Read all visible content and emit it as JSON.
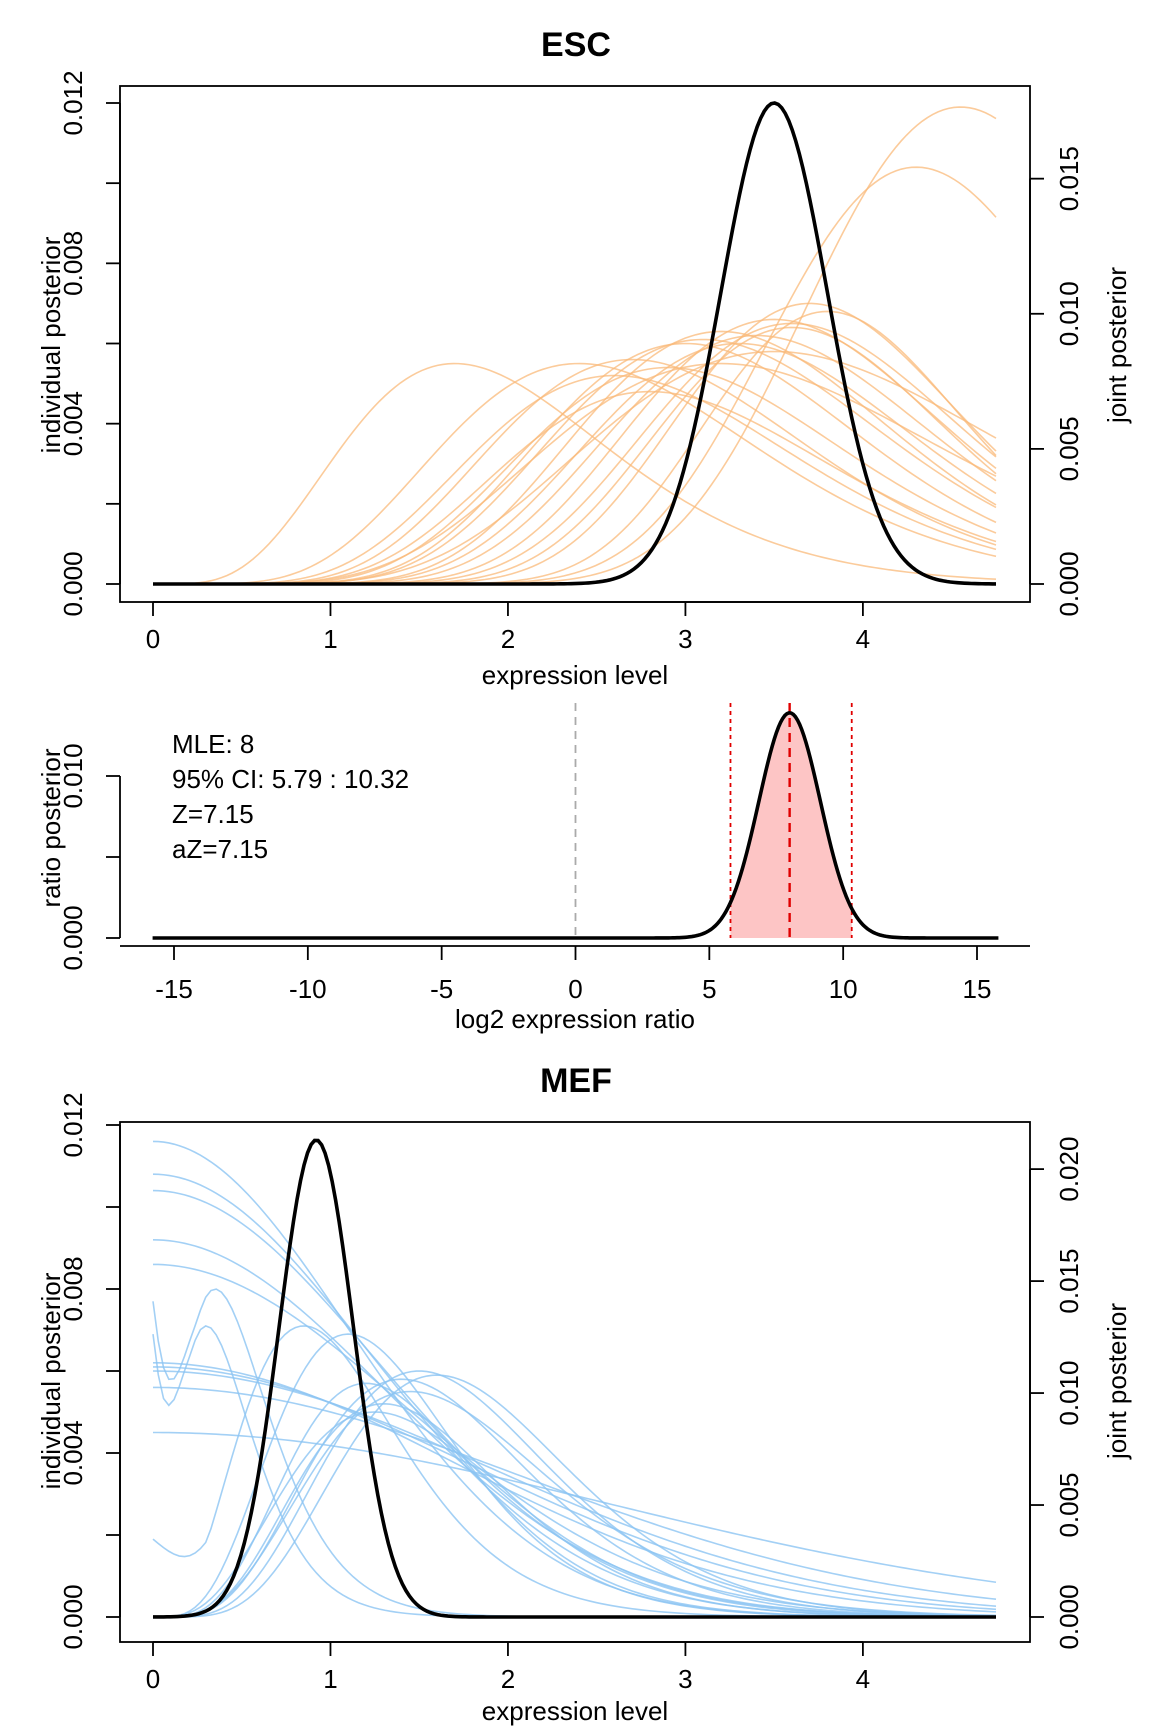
{
  "colors": {
    "esc_individual": "#f9b97a",
    "mef_individual": "#8cc4f2",
    "joint": "#000000",
    "ci_fill": "#fdc5c5",
    "ci_lines": "#e00000",
    "zero_line": "#aaaaaa"
  },
  "chart_data": [
    {
      "type": "line",
      "title": "ESC",
      "xlabel": "expression level",
      "ylabel_left": "individual posterior",
      "ylabel_right": "joint posterior",
      "xlim": [
        0,
        4.75
      ],
      "ylim_left": [
        0,
        0.012
      ],
      "ylim_right": [
        0,
        0.018
      ],
      "x_ticks": [
        "0",
        "1",
        "2",
        "3",
        "4"
      ],
      "y_ticks_left": [
        "0.000",
        "0.004",
        "0.008",
        "0.012"
      ],
      "y_ticks_right": [
        "0.000",
        "0.005",
        "0.010",
        "0.015"
      ],
      "joint_curve": {
        "kind": "gaussian",
        "mean": 3.5,
        "sd": 0.3,
        "peak": 0.0178
      },
      "individual_curves": [
        {
          "kind": "gamma",
          "mode": 1.7,
          "shape": 5,
          "peak": 0.0055
        },
        {
          "kind": "gamma",
          "mode": 2.4,
          "shape": 7,
          "peak": 0.0055
        },
        {
          "kind": "gamma",
          "mode": 2.6,
          "shape": 8,
          "peak": 0.0052
        },
        {
          "kind": "gamma",
          "mode": 2.7,
          "shape": 9,
          "peak": 0.0056
        },
        {
          "kind": "gamma",
          "mode": 2.8,
          "shape": 9,
          "peak": 0.0048
        },
        {
          "kind": "gamma",
          "mode": 2.9,
          "shape": 10,
          "peak": 0.0054
        },
        {
          "kind": "gamma",
          "mode": 3.0,
          "shape": 11,
          "peak": 0.006
        },
        {
          "kind": "gamma",
          "mode": 3.1,
          "shape": 11,
          "peak": 0.0061
        },
        {
          "kind": "gamma",
          "mode": 3.2,
          "shape": 13,
          "peak": 0.0063
        },
        {
          "kind": "gamma",
          "mode": 3.3,
          "shape": 13,
          "peak": 0.006
        },
        {
          "kind": "gamma",
          "mode": 3.4,
          "shape": 14,
          "peak": 0.0062
        },
        {
          "kind": "gamma",
          "mode": 3.5,
          "shape": 16,
          "peak": 0.0066
        },
        {
          "kind": "gamma",
          "mode": 3.6,
          "shape": 17,
          "peak": 0.0065
        },
        {
          "kind": "gamma",
          "mode": 3.6,
          "shape": 20,
          "peak": 0.0064
        },
        {
          "kind": "gamma",
          "mode": 3.7,
          "shape": 22,
          "peak": 0.007
        },
        {
          "kind": "gamma",
          "mode": 3.8,
          "shape": 28,
          "peak": 0.0068
        },
        {
          "kind": "gamma",
          "mode": 3.5,
          "shape": 9,
          "peak": 0.0058
        },
        {
          "kind": "gamma",
          "mode": 3.2,
          "shape": 8,
          "peak": 0.0055
        },
        {
          "kind": "gamma",
          "mode": 4.3,
          "shape": 25,
          "peak": 0.0104
        },
        {
          "kind": "gamma",
          "mode": 4.55,
          "shape": 26,
          "peak": 0.0119
        }
      ]
    },
    {
      "type": "area",
      "xlabel": "log2 expression ratio",
      "ylabel": "ratio posterior",
      "xlim": [
        -15.8,
        15.8
      ],
      "ylim": [
        0,
        0.014
      ],
      "x_ticks": [
        "-15",
        "-10",
        "-5",
        "0",
        "5",
        "10",
        "15"
      ],
      "y_ticks": [
        "0.000",
        "0.010"
      ],
      "ratio_curve": {
        "kind": "gaussian",
        "mean": 8,
        "sd": 1.15,
        "peak": 0.0139
      },
      "mle": 8,
      "ci": [
        5.79,
        10.32
      ],
      "annotations": [
        "MLE: 8",
        "95% CI: 5.79 : 10.32",
        "Z=7.15",
        "aZ=7.15"
      ]
    },
    {
      "type": "line",
      "title": "MEF",
      "xlabel": "expression level",
      "ylabel_left": "individual posterior",
      "ylabel_right": "joint posterior",
      "xlim": [
        0,
        4.75
      ],
      "ylim_left": [
        0,
        0.012
      ],
      "ylim_right": [
        0,
        0.022
      ],
      "x_ticks": [
        "0",
        "1",
        "2",
        "3",
        "4"
      ],
      "y_ticks_left": [
        "0.000",
        "0.004",
        "0.008",
        "0.012"
      ],
      "y_ticks_right": [
        "0.000",
        "0.005",
        "0.010",
        "0.015",
        "0.020"
      ],
      "joint_curve": {
        "kind": "gaussian",
        "mean": 0.92,
        "sd": 0.21,
        "peak": 0.0213
      },
      "individual_curves": [
        {
          "kind": "halfnormal",
          "sd": 1.1,
          "peak": 0.0116
        },
        {
          "kind": "halfnormal",
          "sd": 1.2,
          "peak": 0.0108
        },
        {
          "kind": "halfnormal",
          "sd": 1.25,
          "peak": 0.0104
        },
        {
          "kind": "halfnormal",
          "sd": 1.3,
          "peak": 0.0092
        },
        {
          "kind": "halfnormal",
          "sd": 1.4,
          "peak": 0.0086
        },
        {
          "kind": "gamma",
          "mode": 0.35,
          "shape": 2.0,
          "peak": 0.008,
          "floor": 0.0077
        },
        {
          "kind": "gamma",
          "mode": 0.3,
          "shape": 2.0,
          "peak": 0.0071,
          "floor": 0.0069
        },
        {
          "kind": "halfnormal",
          "sd": 1.7,
          "peak": 0.0062
        },
        {
          "kind": "halfnormal",
          "sd": 1.8,
          "peak": 0.0061
        },
        {
          "kind": "halfnormal",
          "sd": 1.9,
          "peak": 0.006
        },
        {
          "kind": "halfnormal",
          "sd": 2.1,
          "peak": 0.0056
        },
        {
          "kind": "halfnormal",
          "sd": 2.6,
          "peak": 0.0045
        },
        {
          "kind": "gamma",
          "mode": 0.85,
          "shape": 3.5,
          "peak": 0.0071,
          "floor": 0.0019
        },
        {
          "kind": "gamma",
          "mode": 1.1,
          "shape": 4.5,
          "peak": 0.0069
        },
        {
          "kind": "gamma",
          "mode": 1.2,
          "shape": 5,
          "peak": 0.0057
        },
        {
          "kind": "gamma",
          "mode": 1.3,
          "shape": 5,
          "peak": 0.0052
        },
        {
          "kind": "gamma",
          "mode": 1.4,
          "shape": 5,
          "peak": 0.0058
        },
        {
          "kind": "gamma",
          "mode": 1.5,
          "shape": 5.5,
          "peak": 0.006
        },
        {
          "kind": "gamma",
          "mode": 1.6,
          "shape": 6,
          "peak": 0.0059
        },
        {
          "kind": "gamma",
          "mode": 1.45,
          "shape": 4.5,
          "peak": 0.0055
        },
        {
          "kind": "gamma",
          "mode": 1.25,
          "shape": 4,
          "peak": 0.005
        }
      ]
    }
  ]
}
